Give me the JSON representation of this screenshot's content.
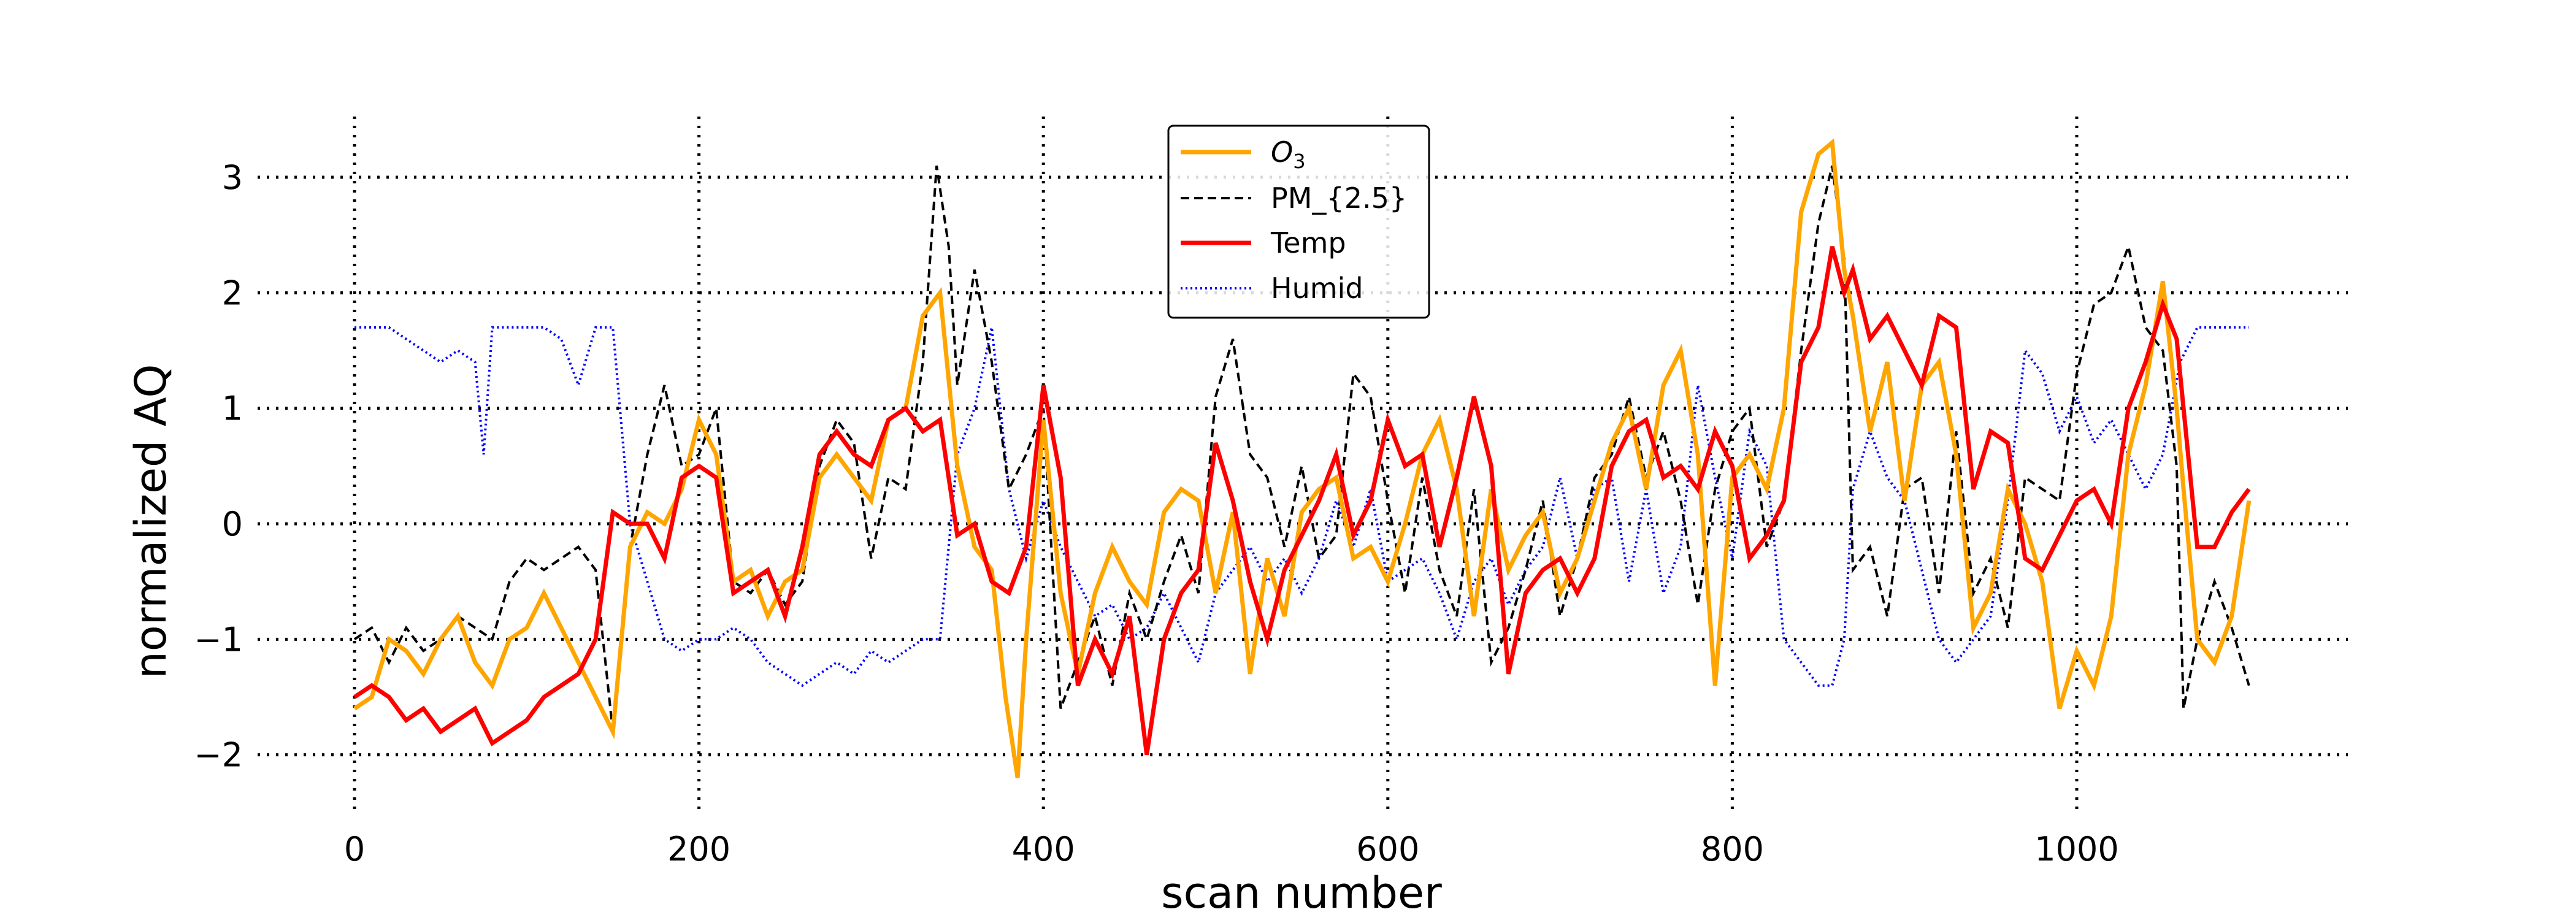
{
  "chart_data": {
    "type": "line",
    "title": "",
    "xlabel": "scan number",
    "ylabel": "normalized AQ",
    "xlim": [
      0,
      1100
    ],
    "ylim": [
      -2.5,
      3.5
    ],
    "xticks": [
      0,
      200,
      400,
      600,
      800,
      1000
    ],
    "xtick_labels": [
      "0",
      "200",
      "400",
      "600",
      "800",
      "1000"
    ],
    "yticks": [
      -2,
      -1,
      0,
      1,
      2,
      3
    ],
    "ytick_labels": [
      "−2",
      "−1",
      "0",
      "1",
      "2",
      "3"
    ],
    "grid": true,
    "grid_style": "dotted",
    "legend_position": "top-center",
    "legend_labels": {
      "o3_base": "O",
      "o3_sub": "3"
    },
    "series": [
      {
        "name": "O3",
        "color": "#FFA500",
        "style": "solid",
        "x": [
          0,
          10,
          20,
          30,
          40,
          50,
          60,
          70,
          80,
          90,
          100,
          110,
          120,
          130,
          140,
          150,
          160,
          170,
          180,
          190,
          200,
          210,
          220,
          230,
          240,
          250,
          260,
          270,
          280,
          290,
          300,
          310,
          320,
          330,
          340,
          350,
          360,
          370,
          378,
          385,
          390,
          400,
          410,
          420,
          430,
          440,
          450,
          460,
          470,
          480,
          490,
          500,
          510,
          520,
          530,
          540,
          550,
          560,
          570,
          580,
          590,
          600,
          610,
          620,
          630,
          640,
          650,
          660,
          670,
          680,
          690,
          700,
          710,
          720,
          730,
          740,
          750,
          760,
          770,
          780,
          790,
          800,
          810,
          820,
          830,
          840,
          850,
          858,
          865,
          870,
          880,
          890,
          900,
          910,
          920,
          930,
          940,
          950,
          960,
          970,
          980,
          990,
          1000,
          1010,
          1020,
          1030,
          1040,
          1050,
          1058,
          1062,
          1070,
          1080,
          1090,
          1100
        ],
        "y": [
          -1.6,
          -1.5,
          -1.0,
          -1.1,
          -1.3,
          -1.0,
          -0.8,
          -1.2,
          -1.4,
          -1.0,
          -0.9,
          -0.6,
          -0.9,
          -1.2,
          -1.5,
          -1.8,
          -0.2,
          0.1,
          0.0,
          0.3,
          0.9,
          0.6,
          -0.5,
          -0.4,
          -0.8,
          -0.5,
          -0.4,
          0.4,
          0.6,
          0.4,
          0.2,
          0.9,
          1.0,
          1.8,
          2.0,
          0.5,
          -0.2,
          -0.4,
          -1.5,
          -2.2,
          -1.0,
          0.9,
          -0.6,
          -1.3,
          -0.6,
          -0.2,
          -0.5,
          -0.7,
          0.1,
          0.3,
          0.2,
          -0.6,
          0.1,
          -1.3,
          -0.3,
          -0.8,
          0.1,
          0.3,
          0.4,
          -0.3,
          -0.2,
          -0.5,
          0.0,
          0.6,
          0.9,
          0.3,
          -0.8,
          0.3,
          -0.4,
          -0.1,
          0.1,
          -0.6,
          -0.3,
          0.2,
          0.7,
          1.0,
          0.3,
          1.2,
          1.5,
          0.6,
          -1.4,
          0.4,
          0.6,
          0.3,
          1.0,
          2.7,
          3.2,
          3.3,
          2.2,
          1.8,
          0.8,
          1.4,
          0.2,
          1.2,
          1.4,
          0.6,
          -0.9,
          -0.6,
          0.3,
          0.0,
          -0.5,
          -1.6,
          -1.1,
          -1.4,
          -0.8,
          0.6,
          1.2,
          2.1,
          1.0,
          0.3,
          -1.0,
          -1.2,
          -0.8,
          0.2
        ]
      },
      {
        "name": "PM_{2.5}",
        "color": "#000000",
        "style": "dashed",
        "x": [
          0,
          10,
          20,
          30,
          40,
          50,
          60,
          70,
          80,
          90,
          100,
          110,
          120,
          130,
          140,
          150,
          160,
          170,
          180,
          190,
          200,
          210,
          220,
          230,
          240,
          250,
          260,
          270,
          280,
          290,
          300,
          310,
          320,
          330,
          338,
          345,
          350,
          360,
          370,
          380,
          390,
          400,
          410,
          420,
          430,
          440,
          450,
          460,
          470,
          480,
          490,
          500,
          510,
          520,
          530,
          540,
          550,
          560,
          570,
          580,
          590,
          600,
          610,
          620,
          630,
          640,
          650,
          660,
          670,
          680,
          690,
          700,
          710,
          720,
          730,
          740,
          750,
          760,
          770,
          780,
          790,
          800,
          810,
          820,
          830,
          840,
          850,
          858,
          865,
          870,
          880,
          890,
          900,
          910,
          920,
          930,
          940,
          950,
          960,
          970,
          980,
          990,
          1000,
          1010,
          1020,
          1030,
          1040,
          1050,
          1058,
          1062,
          1070,
          1080,
          1090,
          1100
        ],
        "y": [
          -1.0,
          -0.9,
          -1.2,
          -0.9,
          -1.1,
          -1.0,
          -0.8,
          -0.9,
          -1.0,
          -0.5,
          -0.3,
          -0.4,
          -0.3,
          -0.2,
          -0.4,
          -1.8,
          -0.2,
          0.6,
          1.2,
          0.5,
          0.6,
          1.0,
          -0.5,
          -0.6,
          -0.4,
          -0.7,
          -0.5,
          0.5,
          0.9,
          0.7,
          -0.3,
          0.4,
          0.3,
          1.4,
          3.1,
          2.4,
          1.2,
          2.2,
          1.4,
          0.3,
          0.6,
          1.0,
          -1.6,
          -1.2,
          -0.8,
          -1.4,
          -0.6,
          -1.0,
          -0.5,
          -0.1,
          -0.6,
          1.1,
          1.6,
          0.6,
          0.4,
          -0.2,
          0.5,
          -0.3,
          -0.1,
          1.3,
          1.1,
          0.2,
          -0.6,
          0.4,
          -0.4,
          -0.8,
          0.3,
          -1.2,
          -0.9,
          -0.4,
          0.2,
          -0.8,
          -0.3,
          0.4,
          0.6,
          1.1,
          0.4,
          0.8,
          0.2,
          -0.7,
          0.3,
          0.8,
          1.0,
          -0.2,
          0.2,
          1.5,
          2.6,
          3.1,
          2.3,
          -0.4,
          -0.2,
          -0.8,
          0.3,
          0.4,
          -0.6,
          0.8,
          -0.6,
          -0.3,
          -0.9,
          0.4,
          0.3,
          0.2,
          1.3,
          1.9,
          2.0,
          2.4,
          1.7,
          1.5,
          0.5,
          -1.6,
          -1.0,
          -0.5,
          -0.9,
          -1.4
        ]
      },
      {
        "name": "Temp",
        "color": "#FF0000",
        "style": "solid",
        "x": [
          0,
          10,
          20,
          30,
          40,
          50,
          60,
          70,
          80,
          90,
          100,
          110,
          120,
          130,
          140,
          150,
          160,
          170,
          180,
          190,
          200,
          210,
          220,
          230,
          240,
          250,
          260,
          270,
          280,
          290,
          300,
          310,
          320,
          330,
          340,
          350,
          360,
          370,
          380,
          390,
          400,
          410,
          420,
          430,
          440,
          450,
          460,
          470,
          480,
          490,
          500,
          510,
          520,
          530,
          540,
          550,
          560,
          570,
          580,
          590,
          600,
          610,
          620,
          630,
          640,
          650,
          660,
          670,
          680,
          690,
          700,
          710,
          720,
          730,
          740,
          750,
          760,
          770,
          780,
          790,
          800,
          810,
          820,
          830,
          840,
          850,
          858,
          865,
          870,
          880,
          890,
          900,
          910,
          920,
          930,
          940,
          950,
          960,
          970,
          980,
          990,
          1000,
          1010,
          1020,
          1030,
          1040,
          1050,
          1058,
          1062,
          1070,
          1080,
          1090,
          1100
        ],
        "y": [
          -1.5,
          -1.4,
          -1.5,
          -1.7,
          -1.6,
          -1.8,
          -1.7,
          -1.6,
          -1.9,
          -1.8,
          -1.7,
          -1.5,
          -1.4,
          -1.3,
          -1.0,
          0.1,
          0.0,
          0.0,
          -0.3,
          0.4,
          0.5,
          0.4,
          -0.6,
          -0.5,
          -0.4,
          -0.8,
          -0.2,
          0.6,
          0.8,
          0.6,
          0.5,
          0.9,
          1.0,
          0.8,
          0.9,
          -0.1,
          0.0,
          -0.5,
          -0.6,
          -0.2,
          1.2,
          0.4,
          -1.4,
          -1.0,
          -1.3,
          -0.8,
          -2.0,
          -1.0,
          -0.6,
          -0.4,
          0.7,
          0.2,
          -0.5,
          -1.0,
          -0.4,
          -0.1,
          0.2,
          0.6,
          -0.1,
          0.2,
          0.9,
          0.5,
          0.6,
          -0.2,
          0.4,
          1.1,
          0.5,
          -1.3,
          -0.6,
          -0.4,
          -0.3,
          -0.6,
          -0.3,
          0.5,
          0.8,
          0.9,
          0.4,
          0.5,
          0.3,
          0.8,
          0.5,
          -0.3,
          -0.1,
          0.2,
          1.4,
          1.7,
          2.4,
          2.0,
          2.2,
          1.6,
          1.8,
          1.5,
          1.2,
          1.8,
          1.7,
          0.3,
          0.8,
          0.7,
          -0.3,
          -0.4,
          -0.1,
          0.2,
          0.3,
          0.0,
          1.0,
          1.4,
          1.9,
          1.6,
          1.0,
          -0.2,
          -0.2,
          0.1,
          0.3
        ]
      },
      {
        "name": "Humid",
        "color": "#0000FF",
        "style": "dotted",
        "x": [
          0,
          10,
          20,
          30,
          40,
          50,
          60,
          70,
          75,
          80,
          90,
          100,
          110,
          120,
          130,
          140,
          150,
          160,
          170,
          180,
          190,
          200,
          210,
          220,
          230,
          240,
          250,
          260,
          270,
          280,
          290,
          300,
          310,
          320,
          330,
          340,
          350,
          360,
          370,
          380,
          390,
          400,
          410,
          420,
          430,
          440,
          450,
          460,
          470,
          480,
          490,
          500,
          510,
          520,
          530,
          540,
          550,
          560,
          570,
          580,
          590,
          600,
          610,
          620,
          630,
          640,
          650,
          660,
          670,
          680,
          690,
          700,
          710,
          720,
          730,
          740,
          750,
          760,
          770,
          780,
          790,
          800,
          810,
          820,
          830,
          840,
          850,
          858,
          865,
          870,
          880,
          890,
          900,
          910,
          920,
          930,
          940,
          950,
          960,
          970,
          980,
          990,
          1000,
          1010,
          1020,
          1030,
          1040,
          1050,
          1060,
          1070,
          1080,
          1090,
          1100
        ],
        "y": [
          1.7,
          1.7,
          1.7,
          1.6,
          1.5,
          1.4,
          1.5,
          1.4,
          0.6,
          1.7,
          1.7,
          1.7,
          1.7,
          1.6,
          1.2,
          1.7,
          1.7,
          0.0,
          -0.5,
          -1.0,
          -1.1,
          -1.0,
          -1.0,
          -0.9,
          -1.0,
          -1.2,
          -1.3,
          -1.4,
          -1.3,
          -1.2,
          -1.3,
          -1.1,
          -1.2,
          -1.1,
          -1.0,
          -1.0,
          0.6,
          1.0,
          1.7,
          0.3,
          -0.3,
          0.2,
          -0.2,
          -0.5,
          -0.8,
          -0.7,
          -1.0,
          -0.9,
          -0.6,
          -0.9,
          -1.2,
          -0.6,
          -0.4,
          -0.2,
          -0.5,
          -0.3,
          -0.6,
          -0.3,
          0.2,
          -0.2,
          0.3,
          -0.5,
          -0.4,
          -0.3,
          -0.6,
          -1.0,
          -0.5,
          -0.3,
          -0.7,
          -0.4,
          -0.2,
          0.4,
          -0.3,
          0.3,
          0.4,
          -0.5,
          0.3,
          -0.6,
          -0.2,
          1.2,
          0.4,
          -0.3,
          0.8,
          0.5,
          -1.0,
          -1.2,
          -1.4,
          -1.4,
          -1.0,
          0.3,
          0.8,
          0.4,
          0.2,
          -0.4,
          -1.0,
          -1.2,
          -1.0,
          -0.8,
          0.2,
          1.5,
          1.3,
          0.8,
          1.1,
          0.7,
          0.9,
          0.6,
          0.3,
          0.6,
          1.4,
          1.7,
          1.7,
          1.7,
          1.7
        ]
      }
    ]
  }
}
